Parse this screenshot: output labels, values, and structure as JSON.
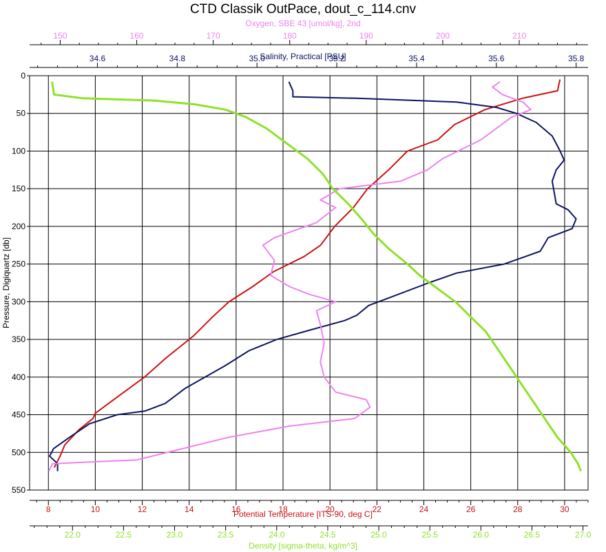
{
  "chart_data": {
    "type": "line",
    "title": "CTD Classik OutPace, dout_c_114.cnv",
    "y_axis": {
      "label": "Pressure, Digiquartz [db]",
      "range": [
        0,
        550
      ],
      "inverted": true,
      "ticks": [
        "0",
        "50",
        "100",
        "150",
        "200",
        "250",
        "300",
        "350",
        "400",
        "450",
        "500",
        "550"
      ],
      "tick_values": [
        0,
        50,
        100,
        150,
        200,
        250,
        300,
        350,
        400,
        450,
        500,
        550
      ]
    },
    "grid": true,
    "series": [
      {
        "name": "Potential Temperature [ITS-90, deg C]",
        "color": "#cc1111",
        "axis": "bottom-1",
        "range": [
          7.2,
          31
        ],
        "ticks": [
          "8",
          "10",
          "12",
          "14",
          "16",
          "18",
          "20",
          "22",
          "24",
          "26",
          "28",
          "30"
        ],
        "tick_values": [
          8,
          10,
          12,
          14,
          16,
          18,
          20,
          22,
          24,
          26,
          28,
          30
        ],
        "points": [
          [
            29.8,
            5
          ],
          [
            29.7,
            20
          ],
          [
            28.2,
            30
          ],
          [
            26.6,
            45
          ],
          [
            25.3,
            65
          ],
          [
            24.6,
            85
          ],
          [
            23.3,
            100
          ],
          [
            22.5,
            125
          ],
          [
            21.6,
            150
          ],
          [
            21.0,
            175
          ],
          [
            20.2,
            200
          ],
          [
            19.6,
            225
          ],
          [
            18.9,
            240
          ],
          [
            17.6,
            260
          ],
          [
            16.7,
            280
          ],
          [
            15.7,
            300
          ],
          [
            15.0,
            320
          ],
          [
            14.2,
            345
          ],
          [
            13.0,
            375
          ],
          [
            12.1,
            400
          ],
          [
            11.0,
            425
          ],
          [
            10.0,
            448
          ],
          [
            9.9,
            455
          ],
          [
            9.3,
            470
          ],
          [
            8.7,
            490
          ],
          [
            8.5,
            505
          ],
          [
            8.25,
            520
          ]
        ]
      },
      {
        "name": "Salinity, Practical [PSU]",
        "color": "#0c1360",
        "axis": "top-2",
        "range": [
          34.43,
          35.83
        ],
        "ticks": [
          "34.6",
          "34.8",
          "35.0",
          "35.2",
          "35.4",
          "35.6",
          "35.8"
        ],
        "tick_values": [
          34.6,
          34.8,
          35.0,
          35.2,
          35.4,
          35.6,
          35.8
        ],
        "points": [
          [
            35.08,
            8
          ],
          [
            35.09,
            20
          ],
          [
            35.09,
            28
          ],
          [
            35.25,
            30
          ],
          [
            35.5,
            35
          ],
          [
            35.6,
            42
          ],
          [
            35.65,
            50
          ],
          [
            35.7,
            62
          ],
          [
            35.74,
            80
          ],
          [
            35.76,
            100
          ],
          [
            35.77,
            112
          ],
          [
            35.75,
            125
          ],
          [
            35.74,
            140
          ],
          [
            35.745,
            155
          ],
          [
            35.75,
            170
          ],
          [
            35.78,
            178
          ],
          [
            35.8,
            190
          ],
          [
            35.79,
            203
          ],
          [
            35.73,
            215
          ],
          [
            35.71,
            233
          ],
          [
            35.62,
            250
          ],
          [
            35.5,
            262
          ],
          [
            35.43,
            275
          ],
          [
            35.33,
            295
          ],
          [
            35.28,
            305
          ],
          [
            35.25,
            318
          ],
          [
            35.22,
            325
          ],
          [
            35.13,
            338
          ],
          [
            35.05,
            350
          ],
          [
            34.98,
            365
          ],
          [
            34.92,
            385
          ],
          [
            34.87,
            400
          ],
          [
            34.82,
            415
          ],
          [
            34.77,
            435
          ],
          [
            34.72,
            445
          ],
          [
            34.65,
            450
          ],
          [
            34.58,
            462
          ],
          [
            34.53,
            480
          ],
          [
            34.49,
            495
          ],
          [
            34.48,
            505
          ],
          [
            34.5,
            515
          ],
          [
            34.5,
            525
          ]
        ]
      },
      {
        "name": "Oxygen, SBE 43 [umol/kg], 2nd",
        "color": "#ee82ee",
        "axis": "top-1",
        "range": [
          146,
          219
        ],
        "ticks": [
          "150",
          "160",
          "170",
          "180",
          "190",
          "200",
          "210"
        ],
        "tick_values": [
          150,
          160,
          170,
          180,
          190,
          200,
          210
        ],
        "points": [
          [
            207.5,
            8
          ],
          [
            206.5,
            15
          ],
          [
            207.8,
            25
          ],
          [
            210.5,
            35
          ],
          [
            211.5,
            45
          ],
          [
            209,
            55
          ],
          [
            207,
            70
          ],
          [
            205,
            85
          ],
          [
            202,
            100
          ],
          [
            200,
            110
          ],
          [
            198,
            125
          ],
          [
            194.5,
            140
          ],
          [
            186.5,
            150
          ],
          [
            184,
            165
          ],
          [
            186,
            175
          ],
          [
            183.5,
            195
          ],
          [
            178,
            215
          ],
          [
            176.5,
            225
          ],
          [
            178,
            245
          ],
          [
            177.5,
            265
          ],
          [
            180,
            280
          ],
          [
            182.5,
            290
          ],
          [
            186,
            300
          ],
          [
            183.5,
            312
          ],
          [
            184,
            330
          ],
          [
            184.5,
            355
          ],
          [
            184,
            380
          ],
          [
            184.5,
            400
          ],
          [
            186,
            420
          ],
          [
            190,
            430
          ],
          [
            190.5,
            440
          ],
          [
            188.5,
            455
          ],
          [
            180,
            465
          ],
          [
            172,
            480
          ],
          [
            166,
            495
          ],
          [
            160,
            510
          ],
          [
            149,
            515
          ],
          [
            148.5,
            525
          ]
        ]
      },
      {
        "name": "Density [sigma-theta, kg/m^3]",
        "color": "#8ee228",
        "axis": "bottom-2",
        "range": [
          21.58,
          27.05
        ],
        "ticks": [
          "22.0",
          "22.5",
          "23.0",
          "23.5",
          "24.0",
          "24.5",
          "25.0",
          "25.5",
          "26.0",
          "26.5",
          "27.0"
        ],
        "tick_values": [
          22.0,
          22.5,
          23.0,
          23.5,
          24.0,
          24.5,
          25.0,
          25.5,
          26.0,
          26.5,
          27.0
        ],
        "points": [
          [
            21.8,
            8
          ],
          [
            21.82,
            25
          ],
          [
            22.1,
            30
          ],
          [
            22.8,
            33
          ],
          [
            23.2,
            38
          ],
          [
            23.5,
            45
          ],
          [
            23.7,
            55
          ],
          [
            23.9,
            70
          ],
          [
            24.1,
            90
          ],
          [
            24.3,
            110
          ],
          [
            24.45,
            130
          ],
          [
            24.55,
            150
          ],
          [
            24.7,
            170
          ],
          [
            24.83,
            190
          ],
          [
            24.95,
            210
          ],
          [
            25.1,
            230
          ],
          [
            25.28,
            250
          ],
          [
            25.4,
            265
          ],
          [
            25.55,
            280
          ],
          [
            25.75,
            300
          ],
          [
            25.9,
            320
          ],
          [
            26.05,
            340
          ],
          [
            26.15,
            360
          ],
          [
            26.25,
            380
          ],
          [
            26.35,
            400
          ],
          [
            26.45,
            420
          ],
          [
            26.55,
            440
          ],
          [
            26.65,
            460
          ],
          [
            26.75,
            480
          ],
          [
            26.88,
            500
          ],
          [
            26.95,
            515
          ],
          [
            26.98,
            525
          ]
        ]
      }
    ]
  }
}
